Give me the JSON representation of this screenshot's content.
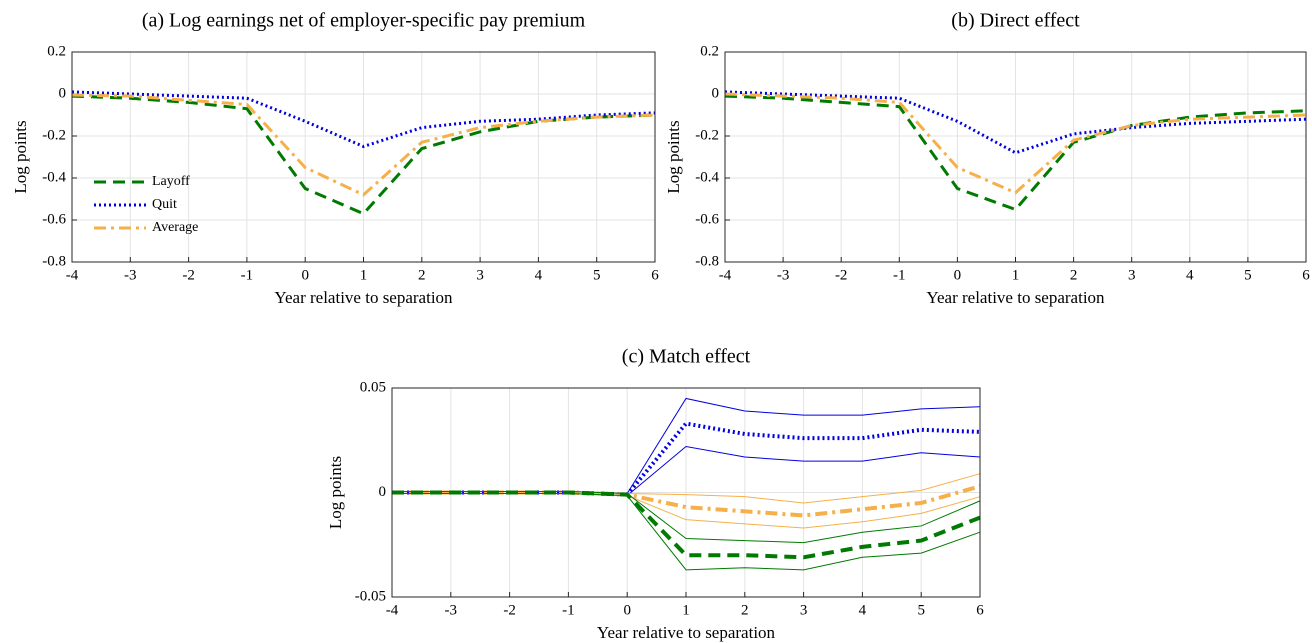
{
  "chart_data": [
    {
      "type": "line",
      "title": "(a) Log earnings net of employer-specific pay premium",
      "xlabel": "Year relative to separation",
      "ylabel": "Log points",
      "x": [
        -4,
        -3,
        -2,
        -1,
        0,
        1,
        2,
        3,
        4,
        5,
        6
      ],
      "xlim": [
        -4,
        6
      ],
      "xticks": [
        -4,
        -3,
        -2,
        -1,
        0,
        1,
        2,
        3,
        4,
        5,
        6
      ],
      "ylim": [
        -0.8,
        0.2
      ],
      "yticks": [
        -0.8,
        -0.6,
        -0.4,
        -0.2,
        0,
        0.2
      ],
      "grid": true,
      "legend": "center left",
      "series": [
        {
          "name": "Layoff",
          "color": "#007a00",
          "dash": "dashed",
          "values": [
            -0.01,
            -0.02,
            -0.04,
            -0.07,
            -0.45,
            -0.57,
            -0.26,
            -0.18,
            -0.13,
            -0.11,
            -0.1
          ]
        },
        {
          "name": "Quit",
          "color": "#0000e0",
          "dash": "dotted",
          "values": [
            0.01,
            0.0,
            -0.01,
            -0.02,
            -0.13,
            -0.25,
            -0.16,
            -0.13,
            -0.12,
            -0.1,
            -0.09
          ]
        },
        {
          "name": "Average",
          "color": "#f5b04a",
          "dash": "dashdot",
          "values": [
            -0.005,
            -0.01,
            -0.03,
            -0.05,
            -0.35,
            -0.48,
            -0.23,
            -0.16,
            -0.13,
            -0.11,
            -0.1
          ]
        }
      ]
    },
    {
      "type": "line",
      "title": "(b) Direct effect",
      "xlabel": "Year relative to separation",
      "ylabel": "Log points",
      "x": [
        -4,
        -3,
        -2,
        -1,
        0,
        1,
        2,
        3,
        4,
        5,
        6
      ],
      "xlim": [
        -4,
        6
      ],
      "xticks": [
        -4,
        -3,
        -2,
        -1,
        0,
        1,
        2,
        3,
        4,
        5,
        6
      ],
      "ylim": [
        -0.8,
        0.2
      ],
      "yticks": [
        -0.8,
        -0.6,
        -0.4,
        -0.2,
        0,
        0.2
      ],
      "grid": true,
      "series": [
        {
          "color": "#007a00",
          "dash": "dashed",
          "values": [
            -0.01,
            -0.02,
            -0.04,
            -0.06,
            -0.45,
            -0.55,
            -0.23,
            -0.15,
            -0.11,
            -0.09,
            -0.08
          ]
        },
        {
          "color": "#0000e0",
          "dash": "dotted",
          "values": [
            0.01,
            0.0,
            -0.01,
            -0.02,
            -0.13,
            -0.28,
            -0.19,
            -0.16,
            -0.14,
            -0.13,
            -0.12
          ]
        },
        {
          "color": "#f5b04a",
          "dash": "dashdot",
          "values": [
            0,
            -0.01,
            -0.02,
            -0.04,
            -0.35,
            -0.47,
            -0.22,
            -0.15,
            -0.12,
            -0.11,
            -0.1
          ]
        }
      ]
    },
    {
      "type": "line",
      "title": "(c) Match effect",
      "xlabel": "Year relative to separation",
      "ylabel": "Log points",
      "x": [
        -4,
        -3,
        -2,
        -1,
        0,
        1,
        2,
        3,
        4,
        5,
        6
      ],
      "xlim": [
        -4,
        6
      ],
      "xticks": [
        -4,
        -3,
        -2,
        -1,
        0,
        1,
        2,
        3,
        4,
        5,
        6
      ],
      "ylim": [
        -0.05,
        0.05
      ],
      "yticks": [
        -0.05,
        0,
        0.05
      ],
      "grid": true,
      "series": [
        {
          "color": "#0000e0",
          "dash": "dotted",
          "values": [
            0,
            0,
            0,
            0,
            -0.001,
            0.033,
            0.028,
            0.026,
            0.026,
            0.03,
            0.029
          ],
          "upper": [
            0.0005,
            0.0005,
            0.0005,
            0.0005,
            -0.0005,
            0.045,
            0.039,
            0.037,
            0.037,
            0.04,
            0.041
          ],
          "lower": [
            -0.0005,
            -0.0005,
            -0.0005,
            -0.0005,
            -0.0015,
            0.022,
            0.017,
            0.015,
            0.015,
            0.019,
            0.017
          ]
        },
        {
          "color": "#f5b04a",
          "dash": "dashdot",
          "values": [
            0,
            0,
            0,
            0,
            -0.001,
            -0.007,
            -0.009,
            -0.011,
            -0.008,
            -0.005,
            0.003
          ],
          "upper": [
            0.0005,
            0.0005,
            0.0005,
            0.0005,
            -0.0005,
            -0.001,
            -0.002,
            -0.005,
            -0.002,
            0.001,
            0.009
          ],
          "lower": [
            -0.0005,
            -0.0005,
            -0.0005,
            -0.0005,
            -0.0015,
            -0.013,
            -0.015,
            -0.017,
            -0.014,
            -0.01,
            -0.002
          ]
        },
        {
          "color": "#007a00",
          "dash": "dashed",
          "values": [
            0,
            0,
            0,
            0,
            -0.001,
            -0.03,
            -0.03,
            -0.031,
            -0.026,
            -0.023,
            -0.012
          ],
          "upper": [
            0.0005,
            0.0005,
            0.0005,
            0.0005,
            -0.0005,
            -0.022,
            -0.023,
            -0.024,
            -0.019,
            -0.016,
            -0.004
          ],
          "lower": [
            -0.0005,
            -0.0005,
            -0.0005,
            -0.0005,
            -0.0015,
            -0.037,
            -0.036,
            -0.037,
            -0.031,
            -0.029,
            -0.019
          ]
        }
      ]
    }
  ]
}
